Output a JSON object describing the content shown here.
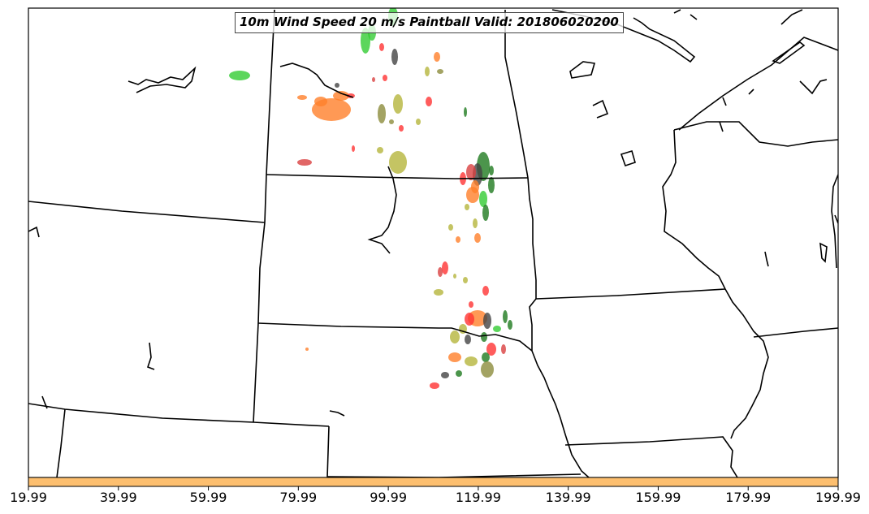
{
  "title": "10m Wind Speed 20 m/s Paintball Valid: 201806020200",
  "colorbar": {
    "color": "#fdbf6f",
    "ticks": [
      "19.99",
      "39.99",
      "59.99",
      "79.99",
      "99.99",
      "119.99",
      "139.99",
      "159.99",
      "179.99",
      "199.99"
    ]
  },
  "member_colors": [
    "#33cc33",
    "#ff7f2a",
    "#ff3333",
    "#b5b53c",
    "#1f7a1f",
    "#444444",
    "#8c8c3c",
    "#d94040"
  ],
  "basemap": {
    "line_color": "#000000"
  }
}
